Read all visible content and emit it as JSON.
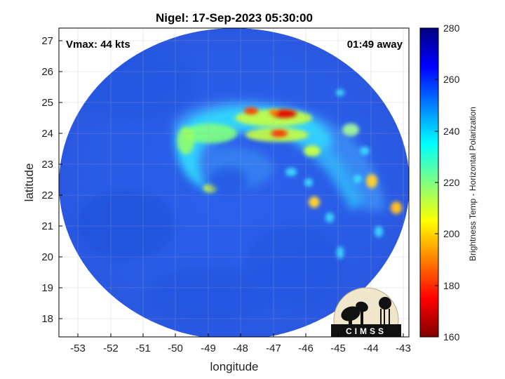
{
  "header": {
    "title": "Nigel: 17-Sep-2023 05:30:00"
  },
  "annotations": {
    "vmax": "Vmax: 44 kts",
    "away": "01:49 away"
  },
  "axes": {
    "xlabel": "longitude",
    "ylabel": "latitude",
    "xticks": [
      "-53",
      "-52",
      "-51",
      "-50",
      "-49",
      "-48",
      "-47",
      "-46",
      "-45",
      "-44",
      "-43"
    ],
    "yticks": [
      "27",
      "26",
      "25",
      "24",
      "23",
      "22",
      "21",
      "20",
      "19",
      "18"
    ],
    "xlim": [
      -53.6,
      -42.8
    ],
    "ylim": [
      17.4,
      27.4
    ],
    "grid": true
  },
  "colorbar": {
    "label": "Brightness Temp - Horizontal Polarization",
    "ticks": [
      "280",
      "260",
      "240",
      "220",
      "200",
      "180",
      "160"
    ],
    "range": [
      160,
      280
    ],
    "colormap": "jet",
    "placement": "right"
  },
  "logo": {
    "text": "CIMSS"
  },
  "colors": {
    "background": "#2a5ee8",
    "frame": "#000000"
  }
}
